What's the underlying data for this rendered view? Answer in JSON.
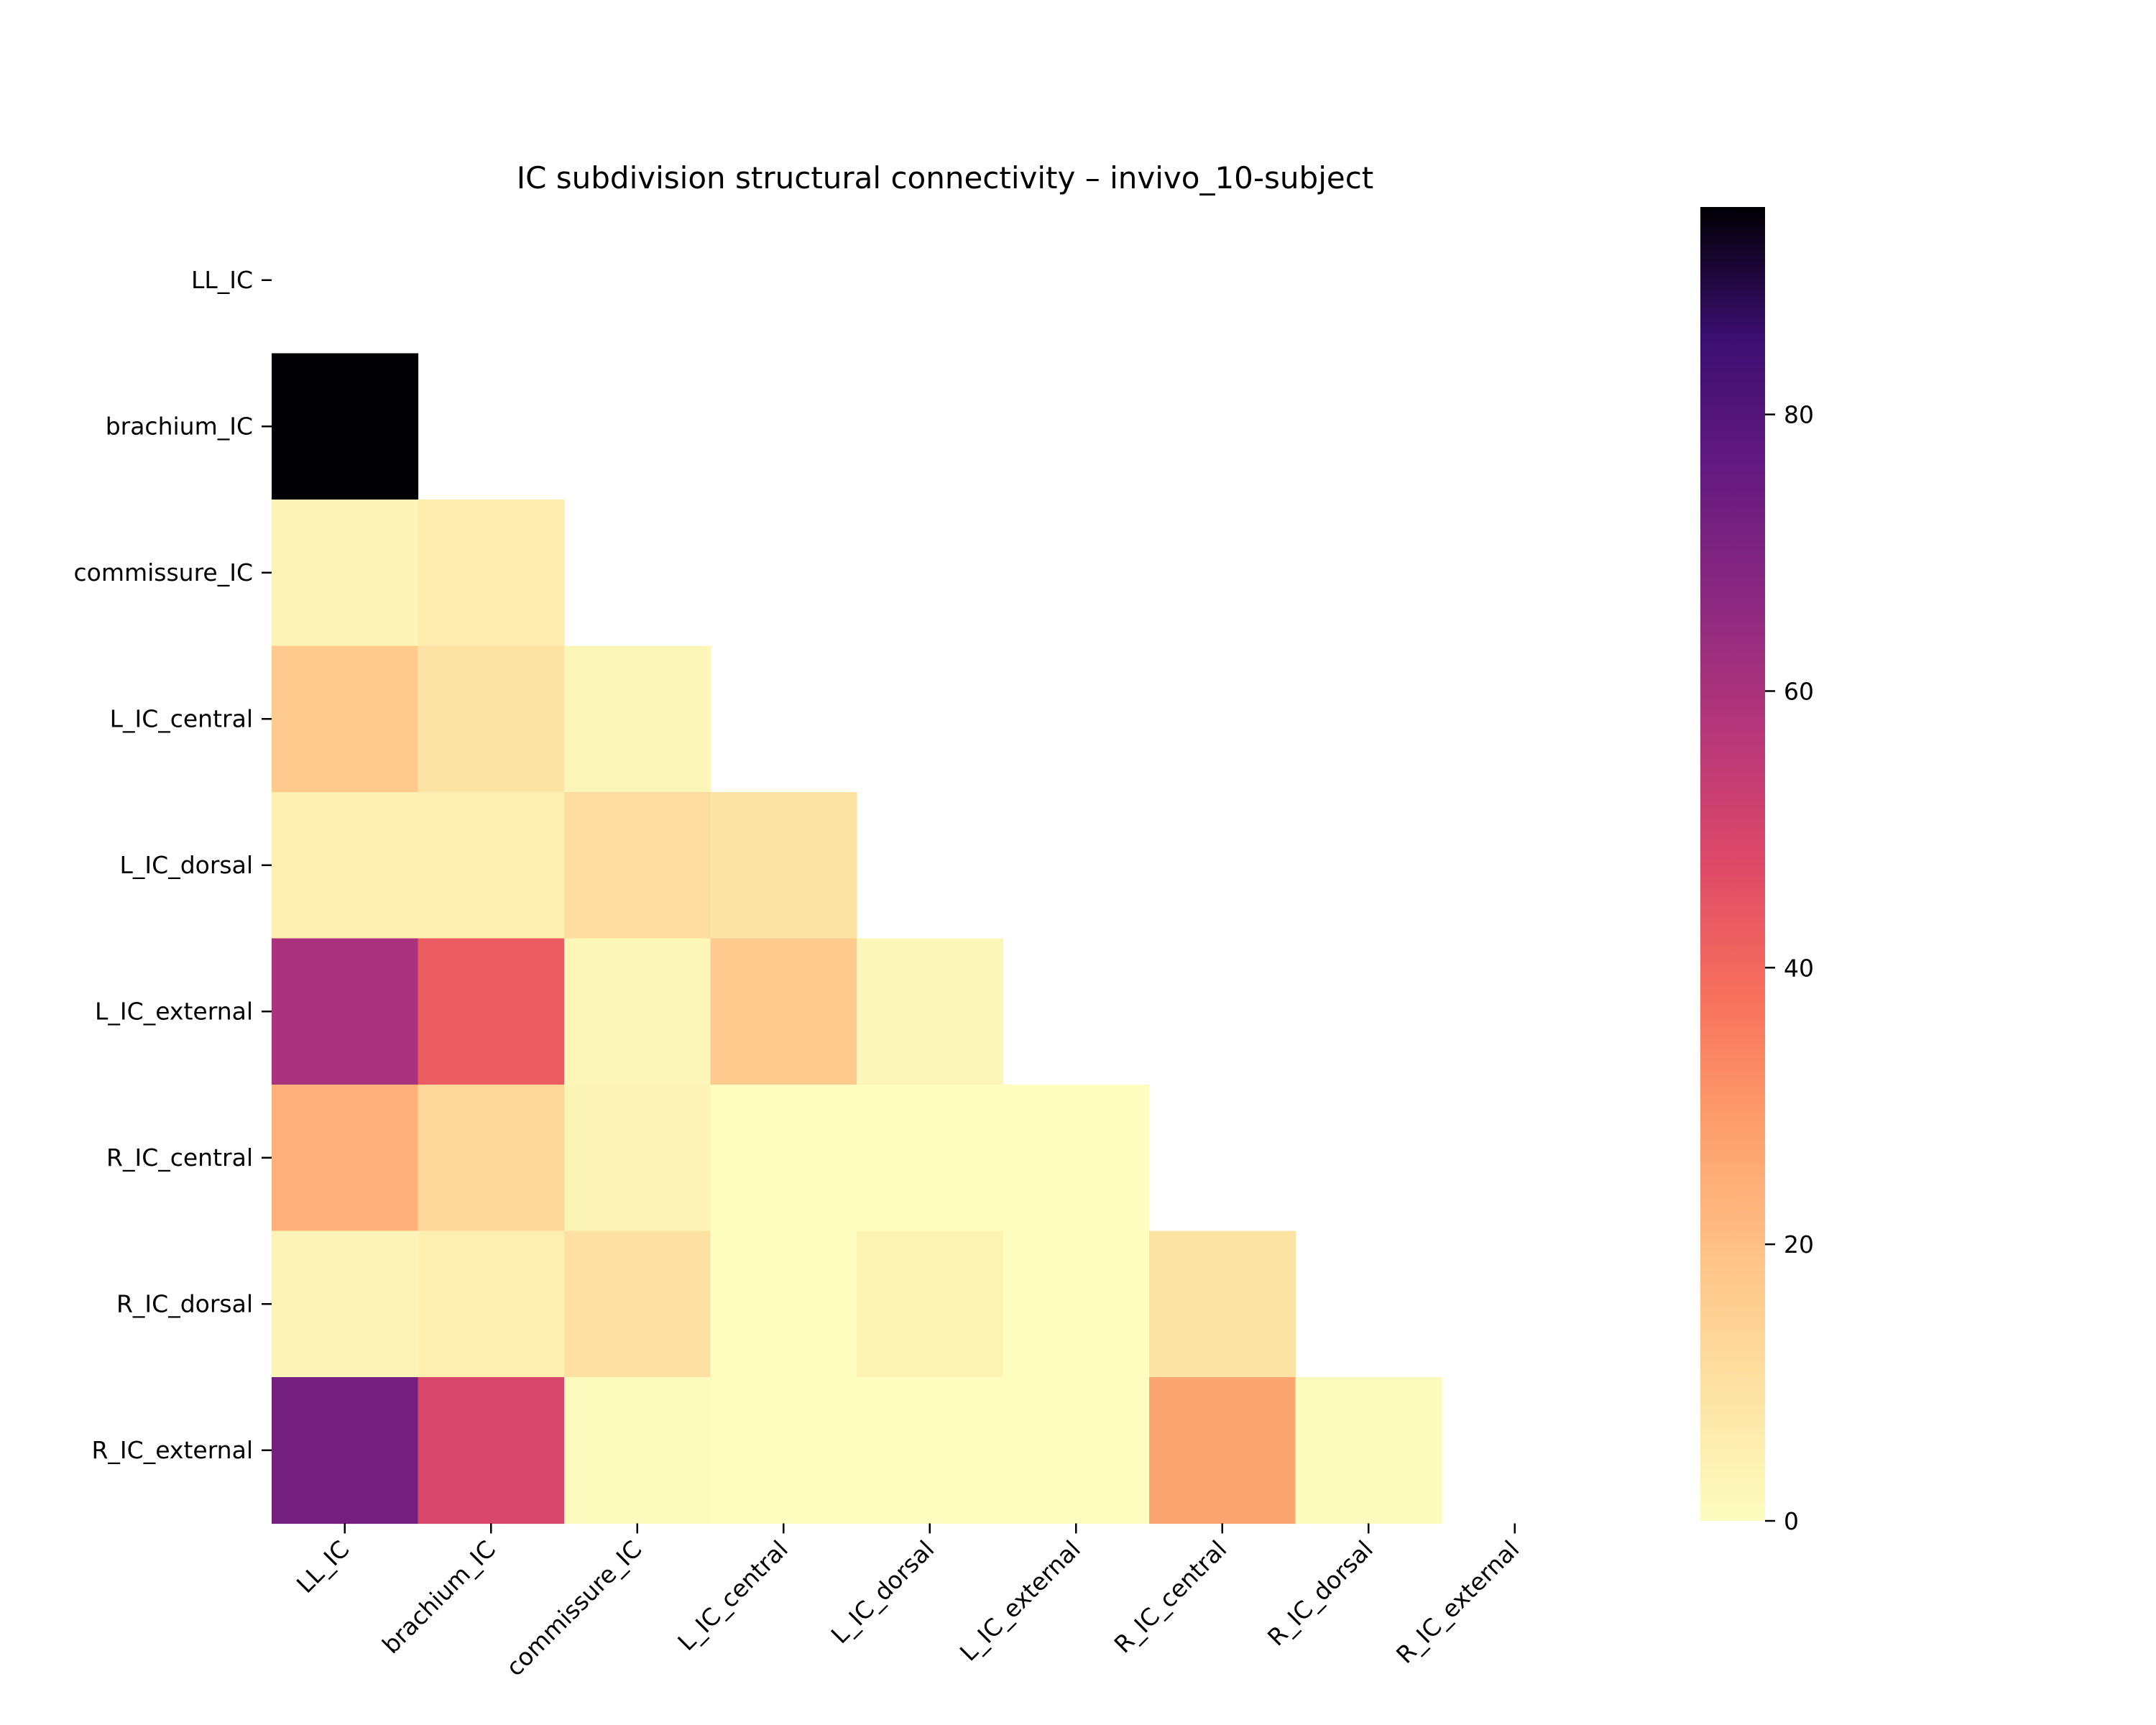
{
  "chart_data": {
    "type": "heatmap",
    "title": "IC subdivision structural connectivity – invivo_10-subject",
    "xlabel": "",
    "ylabel": "",
    "labels": [
      "LL_IC",
      "brachium_IC",
      "commissure_IC",
      "L_IC_central",
      "L_IC_dorsal",
      "L_IC_external",
      "R_IC_central",
      "R_IC_dorsal",
      "R_IC_external"
    ],
    "mask": "upper-triangle-including-diagonal",
    "values": [
      [
        null,
        null,
        null,
        null,
        null,
        null,
        null,
        null,
        null
      ],
      [
        95,
        null,
        null,
        null,
        null,
        null,
        null,
        null,
        null
      ],
      [
        3,
        6,
        null,
        null,
        null,
        null,
        null,
        null,
        null
      ],
      [
        17,
        9,
        2,
        null,
        null,
        null,
        null,
        null,
        null
      ],
      [
        5,
        5,
        11,
        9,
        null,
        null,
        null,
        null,
        null
      ],
      [
        60,
        43,
        2,
        17,
        2,
        null,
        null,
        null,
        null
      ],
      [
        24,
        13,
        3,
        0,
        0,
        0,
        null,
        null,
        null
      ],
      [
        3,
        5,
        10,
        0,
        4,
        0,
        9,
        null,
        null
      ],
      [
        72,
        49,
        1,
        0,
        0,
        0,
        27,
        1,
        null
      ]
    ],
    "colormap": "magma_r",
    "colorbar": {
      "vmin": 0,
      "vmax": 95,
      "ticks": [
        0,
        20,
        40,
        60,
        80
      ],
      "tick_labels": [
        "0",
        "20",
        "40",
        "60",
        "80"
      ]
    },
    "grid": false,
    "legend": "colorbar-right"
  }
}
